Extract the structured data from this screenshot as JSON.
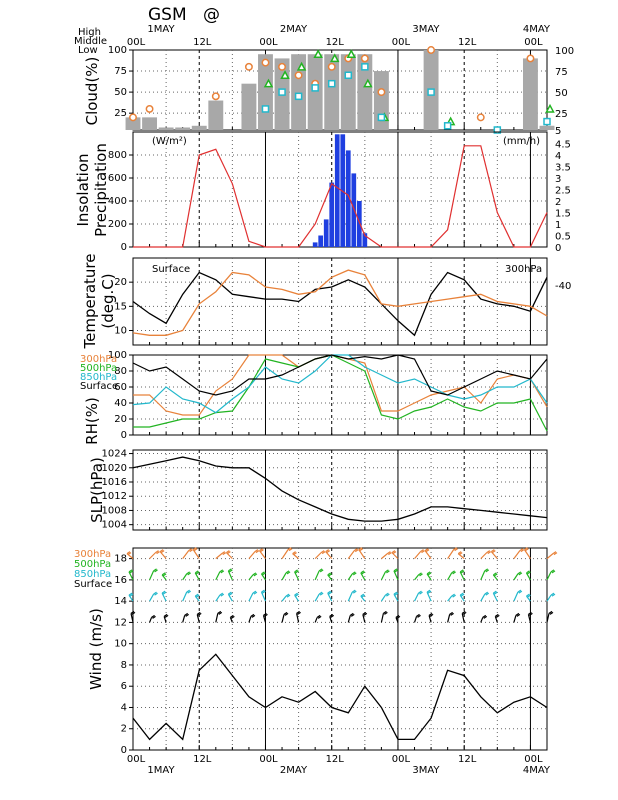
{
  "header": {
    "title": "GSM",
    "location": "@"
  },
  "colors": {
    "orange": "#e8823a",
    "green": "#22b422",
    "cyan": "#22b8cc",
    "blue": "#1f3fe0",
    "red": "#e03030",
    "gray": "#a8a8a8",
    "black": "#000000"
  },
  "time_axis": {
    "labels": [
      "00L",
      "12L",
      "00L",
      "12L",
      "00L",
      "12L",
      "00L"
    ],
    "dates": [
      "1MAY",
      "2MAY",
      "3MAY",
      "4MAY"
    ]
  },
  "chart_data": [
    {
      "type": "bar",
      "ylabel": "Cloud(%)",
      "ylim": [
        5,
        100
      ],
      "yticks": [
        25,
        50,
        75,
        100
      ],
      "right_yticks": [
        "5",
        "25",
        "50",
        "75",
        "100"
      ],
      "legend": [
        "High",
        "Middle",
        "Low"
      ],
      "bar_label": "total",
      "x": [
        0,
        3,
        6,
        9,
        12,
        15,
        18,
        21,
        24,
        27,
        30,
        33,
        36,
        39,
        42,
        45,
        48,
        51,
        54,
        57,
        60,
        63,
        66,
        69,
        72,
        75
      ],
      "total": [
        20,
        20,
        8,
        8,
        10,
        40,
        5,
        60,
        95,
        90,
        95,
        95,
        95,
        95,
        95,
        75,
        5,
        5,
        100,
        5,
        5,
        5,
        5,
        5,
        90,
        10
      ],
      "high": [
        20,
        30,
        null,
        null,
        null,
        45,
        null,
        80,
        85,
        80,
        70,
        60,
        80,
        90,
        90,
        50,
        null,
        null,
        100,
        null,
        null,
        20,
        null,
        null,
        90,
        null
      ],
      "middle": [
        null,
        null,
        null,
        null,
        null,
        null,
        null,
        null,
        60,
        70,
        80,
        95,
        90,
        95,
        60,
        20,
        null,
        null,
        null,
        15,
        null,
        null,
        null,
        null,
        null,
        30
      ],
      "low": [
        null,
        null,
        null,
        null,
        null,
        null,
        null,
        null,
        30,
        50,
        45,
        55,
        60,
        70,
        80,
        20,
        null,
        null,
        50,
        10,
        null,
        null,
        5,
        null,
        null,
        15
      ]
    },
    {
      "type": "line",
      "ylabel_lines": [
        "Insolation",
        "Precipitation"
      ],
      "left_unit": "(W/m²)",
      "right_unit": "(mm/h)",
      "ylim": [
        0,
        1000
      ],
      "yticks": [
        0,
        200,
        400,
        600,
        800
      ],
      "right_ylim": [
        0,
        5
      ],
      "right_yticks": [
        0,
        0.5,
        1,
        1.5,
        2,
        2.5,
        3,
        3.5,
        4,
        4.5
      ],
      "insolation": {
        "x": [
          0,
          3,
          6,
          9,
          12,
          15,
          18,
          21,
          24,
          27,
          30,
          33,
          36,
          39,
          42,
          45,
          48,
          51,
          54,
          57,
          60,
          63,
          66,
          69,
          72,
          75
        ],
        "values": [
          0,
          0,
          0,
          0,
          800,
          850,
          550,
          50,
          0,
          0,
          0,
          200,
          550,
          450,
          100,
          0,
          0,
          0,
          0,
          150,
          880,
          880,
          300,
          0,
          0,
          300
        ]
      },
      "precipitation": {
        "x": [
          33,
          34,
          35,
          36,
          37,
          38,
          39,
          40,
          41,
          42
        ],
        "values": [
          0.2,
          0.5,
          1.2,
          2.8,
          4.9,
          4.9,
          4.2,
          3.2,
          2.0,
          0.6
        ]
      }
    },
    {
      "type": "line",
      "ylabel_lines": [
        "Temperature",
        "(deg.C)"
      ],
      "ylim": [
        7,
        25
      ],
      "yticks": [
        10,
        15,
        20
      ],
      "right_tick_label": "-40",
      "series": [
        {
          "name": "Surface",
          "x": [
            0,
            3,
            6,
            9,
            12,
            15,
            18,
            21,
            24,
            27,
            30,
            33,
            36,
            39,
            42,
            45,
            48,
            51,
            54,
            57,
            60,
            63,
            66,
            69,
            72,
            75
          ],
          "values": [
            16,
            13.5,
            11.5,
            17.5,
            22,
            20.5,
            17.5,
            17,
            16.5,
            16.5,
            16,
            18.5,
            19,
            20.5,
            19,
            15.5,
            12,
            9,
            17.5,
            22,
            20.5,
            16.5,
            15.5,
            15,
            14,
            21
          ]
        },
        {
          "name": "300hPa",
          "x": [
            0,
            3,
            6,
            9,
            12,
            15,
            18,
            21,
            24,
            27,
            30,
            33,
            36,
            39,
            42,
            45,
            48,
            51,
            54,
            57,
            60,
            63,
            66,
            69,
            72,
            75
          ],
          "values": [
            9.5,
            9,
            9,
            10,
            15.5,
            18,
            22,
            21.5,
            19,
            18.5,
            17.5,
            18,
            21,
            22.5,
            21.5,
            15.5,
            15,
            15.5,
            16,
            16.5,
            17,
            17.5,
            16,
            15.5,
            15,
            13
          ]
        }
      ]
    },
    {
      "type": "line",
      "ylabel": "RH(%)",
      "ylim": [
        0,
        100
      ],
      "yticks": [
        0,
        20,
        40,
        60,
        80,
        100
      ],
      "series": [
        {
          "name": "300hPa",
          "x": [
            0,
            3,
            6,
            9,
            12,
            15,
            18,
            21,
            24,
            27,
            30,
            33,
            36,
            39,
            42,
            45,
            48,
            51,
            54,
            57,
            60,
            63,
            66,
            69,
            72,
            75
          ],
          "values": [
            50,
            50,
            30,
            25,
            25,
            55,
            70,
            100,
            100,
            100,
            85,
            95,
            100,
            95,
            90,
            30,
            30,
            40,
            50,
            55,
            60,
            40,
            70,
            75,
            70,
            35
          ]
        },
        {
          "name": "500hPa",
          "x": [
            0,
            3,
            6,
            9,
            12,
            15,
            18,
            21,
            24,
            27,
            30,
            33,
            36,
            39,
            42,
            45,
            48,
            51,
            54,
            57,
            60,
            63,
            66,
            69,
            72,
            75
          ],
          "values": [
            10,
            10,
            15,
            20,
            20,
            28,
            30,
            60,
            95,
            90,
            85,
            95,
            100,
            90,
            80,
            25,
            20,
            30,
            35,
            45,
            35,
            30,
            40,
            40,
            45,
            5
          ]
        },
        {
          "name": "850hPa",
          "x": [
            0,
            3,
            6,
            9,
            12,
            15,
            18,
            21,
            24,
            27,
            30,
            33,
            36,
            39,
            42,
            45,
            48,
            51,
            54,
            57,
            60,
            63,
            66,
            69,
            72,
            75
          ],
          "values": [
            38,
            40,
            60,
            45,
            40,
            28,
            45,
            60,
            85,
            70,
            65,
            80,
            100,
            100,
            85,
            75,
            65,
            70,
            60,
            50,
            45,
            50,
            60,
            60,
            70,
            40
          ]
        },
        {
          "name": "Surface",
          "x": [
            0,
            3,
            6,
            9,
            12,
            15,
            18,
            21,
            24,
            27,
            30,
            33,
            36,
            39,
            42,
            45,
            48,
            51,
            54,
            57,
            60,
            63,
            66,
            69,
            72,
            75
          ],
          "values": [
            90,
            80,
            85,
            70,
            55,
            50,
            55,
            70,
            70,
            75,
            85,
            95,
            100,
            95,
            98,
            95,
            100,
            95,
            55,
            50,
            60,
            70,
            80,
            75,
            70,
            95
          ]
        }
      ]
    },
    {
      "type": "line",
      "ylabel": "SLP(hPa)",
      "ylim": [
        1002.5,
        1025
      ],
      "yticks": [
        1004,
        1008,
        1012,
        1016,
        1020,
        1024
      ],
      "x": [
        0,
        3,
        6,
        9,
        12,
        15,
        18,
        21,
        24,
        27,
        30,
        33,
        36,
        39,
        42,
        45,
        48,
        51,
        54,
        57,
        60,
        63,
        66,
        69,
        72,
        75
      ],
      "values": [
        1020,
        1021,
        1022,
        1023,
        1022,
        1020.5,
        1020,
        1020,
        1017,
        1013.5,
        1011,
        1009,
        1007,
        1005.5,
        1005,
        1005,
        1005.5,
        1007,
        1009,
        1009,
        1008.5,
        1008,
        1007.5,
        1007,
        1006.5,
        1006
      ]
    },
    {
      "type": "line",
      "ylabel": "Wind (m/s)",
      "ylim": [
        0,
        19
      ],
      "yticks": [
        0,
        2,
        4,
        6,
        8,
        10,
        12,
        14,
        16,
        18
      ],
      "barb_levels": [
        {
          "name": "300hPa",
          "y": 18
        },
        {
          "name": "500hPa",
          "y": 16
        },
        {
          "name": "850hPa",
          "y": 14
        },
        {
          "name": "Surface",
          "y": 12
        }
      ],
      "series": [
        {
          "name": "Surface",
          "x": [
            0,
            3,
            6,
            9,
            12,
            15,
            18,
            21,
            24,
            27,
            30,
            33,
            36,
            39,
            42,
            45,
            48,
            51,
            54,
            57,
            60,
            63,
            66,
            69,
            72,
            75
          ],
          "values": [
            3,
            1,
            2.5,
            1,
            7.5,
            9,
            7,
            5,
            4,
            5,
            4.5,
            5.5,
            4,
            3.5,
            6,
            4,
            1,
            1,
            3,
            7.5,
            7,
            5,
            3.5,
            4.5,
            5,
            4
          ]
        }
      ]
    }
  ]
}
